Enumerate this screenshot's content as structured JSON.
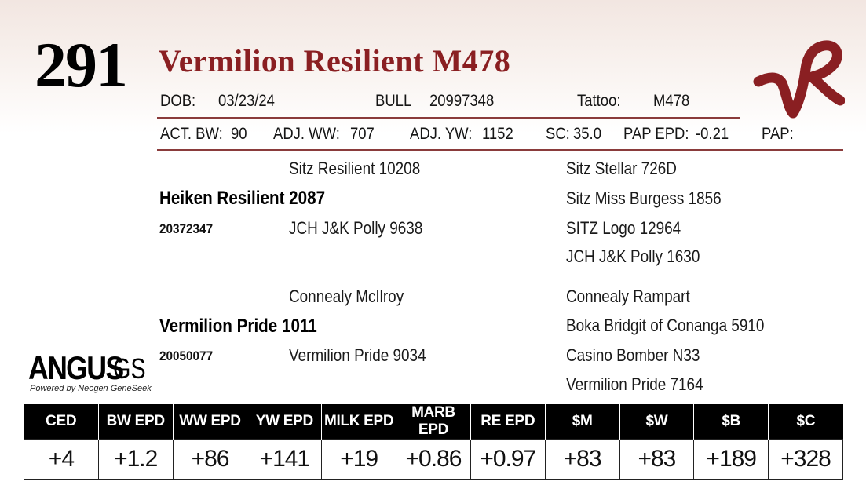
{
  "lot_number": "291",
  "animal_name": "Vermilion Resilient M478",
  "logo_text": "VR",
  "info": {
    "dob_label": "DOB:",
    "dob": "03/23/24",
    "sex": "BULL",
    "registration": "20997348",
    "tattoo_label": "Tattoo:",
    "tattoo": "M478",
    "act_bw_label": "ACT. BW:",
    "act_bw": "90",
    "adj_ww_label": "ADJ. WW:",
    "adj_ww": "707",
    "adj_yw_label": "ADJ. YW:",
    "adj_yw": "1152",
    "sc_label": "SC:",
    "sc": "35.0",
    "pap_epd_label": "PAP EPD:",
    "pap_epd": "-0.21",
    "pap_label": "PAP:"
  },
  "pedigree": {
    "sire": {
      "name": "Heiken Resilient 2087",
      "reg": "20372347"
    },
    "sire_sire": "Sitz Resilient 10208",
    "sire_dam": "JCH J&K Polly 9638",
    "sire_sire_sire": "Sitz Stellar 726D",
    "sire_sire_dam": "Sitz Miss Burgess 1856",
    "sire_dam_sire": "SITZ Logo 12964",
    "sire_dam_dam": "JCH J&K Polly 1630",
    "dam": {
      "name": "Vermilion Pride 1011",
      "reg": "20050077"
    },
    "dam_sire": "Connealy McIlroy",
    "dam_dam": "Vermilion Pride 9034",
    "dam_sire_sire": "Connealy Rampart",
    "dam_sire_dam": "Boka Bridgit of Conanga 5910",
    "dam_dam_sire": "Casino Bomber N33",
    "dam_dam_dam": "Vermilion Pride 7164"
  },
  "angus_logo": {
    "word": "ANGUS",
    "suffix": "GS",
    "tagline": "Powered by Neogen GeneSeek"
  },
  "epds": [
    {
      "label": "CED",
      "value": "+4"
    },
    {
      "label": "BW EPD",
      "value": "+1.2"
    },
    {
      "label": "WW EPD",
      "value": "+86"
    },
    {
      "label": "YW EPD",
      "value": "+141"
    },
    {
      "label": "MILK EPD",
      "value": "+19"
    },
    {
      "label": "MARB EPD",
      "value": "+0.86"
    },
    {
      "label": "RE EPD",
      "value": "+0.97"
    },
    {
      "label": "$M",
      "value": "+83"
    },
    {
      "label": "$W",
      "value": "+83"
    },
    {
      "label": "$B",
      "value": "+189"
    },
    {
      "label": "$C",
      "value": "+328"
    }
  ],
  "colors": {
    "accent": "#8a1f22",
    "rule": "#8a3b3b",
    "header_bg": "#000000"
  }
}
